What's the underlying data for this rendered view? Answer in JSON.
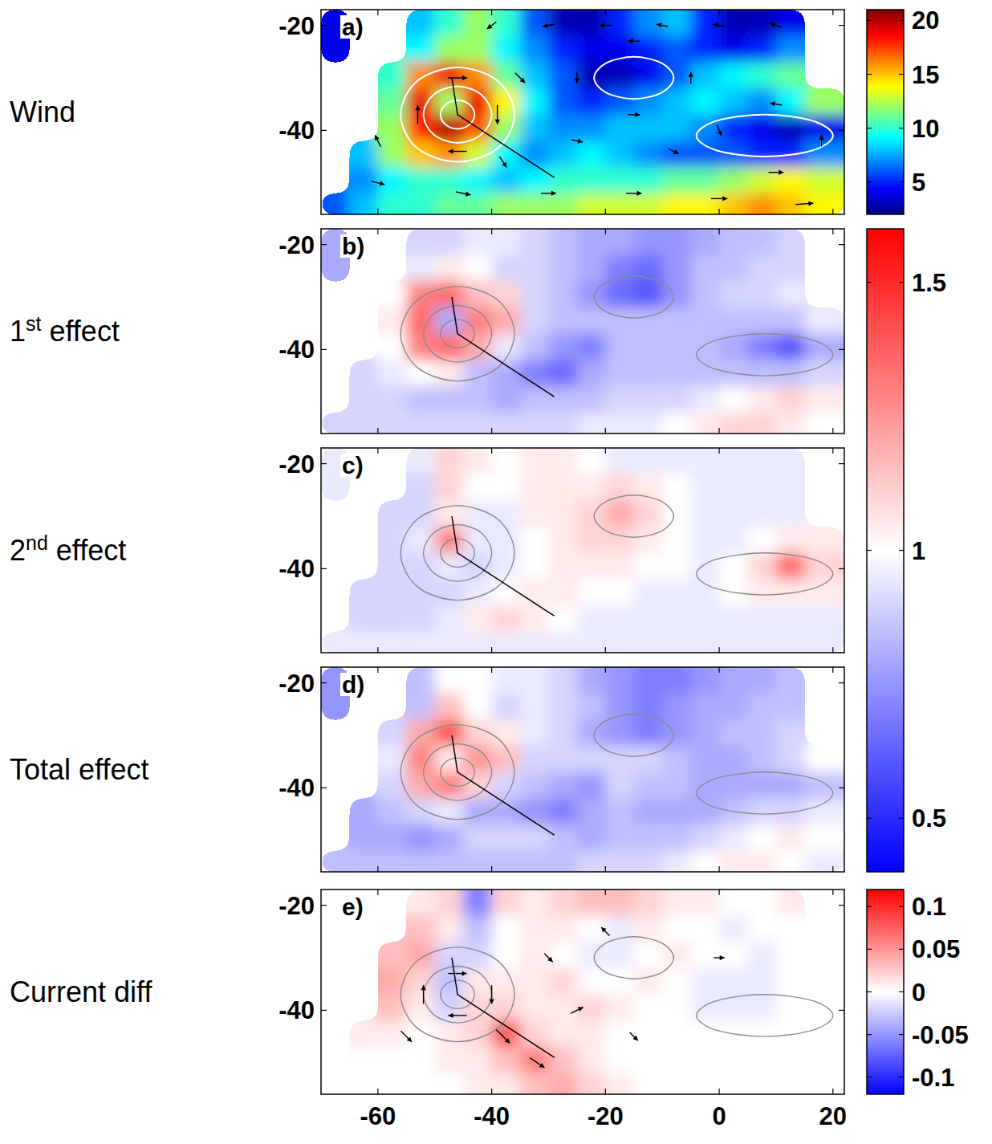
{
  "chart_data": {
    "type": "heatmap",
    "xlim": [
      -70,
      22
    ],
    "ylim": [
      -56,
      -17
    ],
    "xticks": [
      -60,
      -40,
      -20,
      0,
      20
    ],
    "yticks": [
      -20,
      -40
    ],
    "lon_edges": [
      -70,
      -65,
      -60,
      -55,
      -50,
      -45,
      -40,
      -35,
      -30,
      -25,
      -20,
      -15,
      -10,
      -5,
      0,
      5,
      10,
      15,
      22
    ],
    "lat_edges": [
      -17,
      -22,
      -27,
      -32,
      -37,
      -42,
      -47,
      -52,
      -56
    ],
    "isobars": [
      {
        "lon": [
          -43,
          -43.9,
          -46,
          -48.1,
          -49,
          -48.1,
          -46,
          -43.9
        ],
        "lat": [
          -37,
          -35.1,
          -34.3,
          -35.1,
          -37,
          -38.9,
          -39.7,
          -38.9
        ]
      },
      {
        "lon": [
          -40,
          -41.8,
          -46,
          -50.2,
          -52,
          -50.2,
          -46,
          -41.8
        ],
        "lat": [
          -37,
          -33.2,
          -31.6,
          -33.2,
          -37,
          -40.8,
          -42.4,
          -40.8
        ]
      },
      {
        "lon": [
          -36,
          -38.9,
          -46,
          -53.1,
          -56,
          -53.1,
          -46,
          -38.9
        ],
        "lat": [
          -37,
          -30.6,
          -28,
          -30.6,
          -37,
          -43.4,
          -46,
          -43.4
        ]
      },
      {
        "lon": [
          -8,
          -10.1,
          -15,
          -19.9,
          -22,
          -19.9,
          -15,
          -10.1
        ],
        "lat": [
          -30,
          -27.2,
          -26,
          -27.2,
          -30,
          -32.8,
          -34,
          -32.8
        ]
      },
      {
        "lon": [
          20,
          16.5,
          8,
          -0.5,
          -4,
          -0.5,
          8,
          16.5
        ],
        "lat": [
          -41,
          -38.2,
          -37,
          -38.2,
          -41,
          -43.8,
          -45,
          -43.8
        ]
      }
    ],
    "track": {
      "lon": [
        -47,
        -46,
        -29
      ],
      "lat": [
        -30,
        -37,
        -49
      ]
    },
    "panels": [
      {
        "label": "Wind",
        "letter": "a)",
        "color": "jet",
        "cells": [
          [
            4,
            null,
            null,
            8,
            10,
            12,
            10,
            6,
            3,
            3,
            5,
            7,
            8,
            5,
            3,
            3,
            4,
            null
          ],
          [
            4,
            null,
            null,
            9,
            12,
            12,
            9,
            7,
            5,
            4,
            4,
            5,
            6,
            5,
            4,
            5,
            7,
            null
          ],
          [
            null,
            null,
            10,
            16,
            19,
            16,
            11,
            8,
            6,
            3,
            3,
            4,
            6,
            8,
            9,
            10,
            11,
            null
          ],
          [
            null,
            null,
            11,
            19,
            12,
            19,
            14,
            9,
            6,
            5,
            6,
            7,
            8,
            9,
            8,
            7,
            9,
            12
          ],
          [
            null,
            null,
            12,
            18,
            20,
            17,
            12,
            8,
            7,
            7,
            8,
            8,
            8,
            7,
            5,
            4,
            3,
            4
          ],
          [
            null,
            8,
            12,
            15,
            16,
            13,
            9,
            7,
            8,
            9,
            8,
            7,
            6,
            6,
            6,
            5,
            5,
            7
          ],
          [
            null,
            7,
            9,
            10,
            10,
            9,
            8,
            9,
            10,
            10,
            10,
            10,
            11,
            11,
            12,
            13,
            14,
            13
          ],
          [
            6,
            8,
            10,
            10,
            11,
            11,
            12,
            12,
            12,
            13,
            13,
            13,
            14,
            14,
            15,
            16,
            15,
            14
          ]
        ],
        "vectors": {
          "lon": [
            -40,
            -30,
            -20,
            -10,
            0,
            10,
            -46,
            -39,
            -46,
            -53,
            -35,
            -38,
            -25,
            -15,
            -5,
            -15,
            0,
            10,
            18,
            10,
            -60,
            -45,
            -30,
            -15,
            0,
            15,
            -25,
            -8,
            -60
          ],
          "lat": [
            -20,
            -20,
            -20,
            -20,
            -20,
            -20,
            -30,
            -37,
            -44,
            -37,
            -30,
            -46,
            -30,
            -23,
            -30,
            -37,
            -40,
            -35,
            -42,
            -48,
            -50,
            -52,
            -52,
            -52,
            -53,
            -54,
            -42,
            -44,
            -42
          ],
          "u": [
            -4,
            -5,
            -5,
            -5,
            -6,
            -6,
            16,
            0,
            -15,
            0,
            6,
            4,
            0,
            -5,
            0,
            6,
            2,
            -6,
            0,
            10,
            8,
            10,
            10,
            11,
            12,
            14,
            5,
            4,
            -3
          ],
          "v": [
            -3,
            -1,
            0,
            1,
            1,
            2,
            0,
            -16,
            0,
            15,
            -6,
            -6,
            -4,
            0,
            5,
            0,
            -5,
            1,
            5,
            0,
            -2,
            -2,
            0,
            0,
            0,
            1,
            -1,
            -2,
            6
          ]
        }
      },
      {
        "label": "1st effect",
        "letter": "b)",
        "color": "diverging",
        "cells": [
          [
            0.8,
            null,
            null,
            0.9,
            0.9,
            0.95,
            0.95,
            0.9,
            0.85,
            0.8,
            0.8,
            0.75,
            0.75,
            0.8,
            0.85,
            0.85,
            0.9,
            null
          ],
          [
            0.8,
            null,
            null,
            0.95,
            1.05,
            1.0,
            0.9,
            0.9,
            0.85,
            0.8,
            0.7,
            0.65,
            0.75,
            0.85,
            0.85,
            0.9,
            0.9,
            null
          ],
          [
            null,
            null,
            1.0,
            1.3,
            1.35,
            1.15,
            1.1,
            0.9,
            0.85,
            0.75,
            0.65,
            0.6,
            0.75,
            0.85,
            0.9,
            0.9,
            0.95,
            null
          ],
          [
            null,
            null,
            1.05,
            1.35,
            0.8,
            1.3,
            1.2,
            0.9,
            0.85,
            0.85,
            0.85,
            0.85,
            0.85,
            0.85,
            0.85,
            0.85,
            0.85,
            0.95
          ],
          [
            null,
            null,
            1.0,
            1.3,
            1.35,
            1.2,
            0.95,
            0.85,
            0.75,
            0.7,
            0.85,
            0.85,
            0.85,
            0.85,
            0.8,
            0.7,
            0.6,
            0.8
          ],
          [
            null,
            0.9,
            0.95,
            1.0,
            1.05,
            0.85,
            0.8,
            0.7,
            0.65,
            0.8,
            0.85,
            0.85,
            0.85,
            0.85,
            0.85,
            0.85,
            0.85,
            0.9
          ],
          [
            null,
            0.9,
            0.9,
            0.85,
            0.85,
            0.85,
            0.8,
            0.85,
            0.85,
            0.85,
            0.9,
            0.9,
            0.9,
            0.95,
            1.0,
            1.05,
            1.1,
            1.05
          ],
          [
            0.9,
            0.9,
            0.9,
            0.9,
            0.9,
            0.9,
            0.9,
            0.9,
            0.9,
            0.95,
            0.95,
            0.95,
            1.0,
            1.05,
            1.1,
            1.1,
            1.05,
            1.0
          ]
        ]
      },
      {
        "label": "2nd effect",
        "letter": "c)",
        "color": "diverging",
        "cells": [
          [
            0.95,
            null,
            null,
            0.95,
            1.1,
            1.05,
            1.0,
            1.05,
            1.05,
            1.0,
            0.95,
            0.95,
            0.95,
            0.95,
            0.95,
            0.95,
            0.95,
            null
          ],
          [
            0.95,
            null,
            null,
            0.9,
            1.1,
            1.0,
            1.0,
            1.05,
            1.05,
            1.05,
            1.1,
            1.05,
            1.0,
            0.95,
            0.95,
            0.95,
            0.95,
            null
          ],
          [
            null,
            null,
            0.9,
            0.9,
            1.05,
            0.95,
            0.95,
            1.05,
            1.05,
            1.1,
            1.2,
            1.1,
            1.0,
            0.95,
            0.95,
            0.95,
            0.95,
            null
          ],
          [
            null,
            null,
            0.9,
            0.95,
            1.3,
            0.95,
            0.95,
            1.0,
            1.05,
            1.1,
            1.1,
            1.05,
            1.0,
            0.95,
            0.95,
            1.0,
            1.05,
            1.05
          ],
          [
            null,
            null,
            0.9,
            0.9,
            0.95,
            0.9,
            0.95,
            1.0,
            1.05,
            1.05,
            1.05,
            1.0,
            1.0,
            0.95,
            1.0,
            1.1,
            1.35,
            1.1
          ],
          [
            null,
            0.9,
            0.9,
            0.9,
            0.9,
            0.95,
            1.0,
            1.05,
            1.05,
            1.0,
            1.0,
            0.95,
            0.95,
            0.95,
            1.0,
            1.05,
            1.05,
            1.05
          ],
          [
            null,
            0.9,
            0.9,
            0.9,
            0.95,
            1.05,
            1.1,
            1.05,
            1.0,
            0.95,
            0.95,
            0.95,
            0.95,
            0.95,
            0.95,
            0.95,
            0.95,
            0.95
          ],
          [
            0.95,
            0.95,
            0.95,
            0.95,
            0.95,
            0.95,
            0.95,
            0.95,
            0.95,
            0.95,
            0.95,
            0.95,
            0.95,
            0.95,
            0.95,
            0.95,
            0.95,
            0.95
          ]
        ]
      },
      {
        "label": "Total effect",
        "letter": "d)",
        "color": "diverging",
        "cells": [
          [
            0.75,
            null,
            null,
            0.85,
            1.0,
            1.0,
            0.95,
            0.95,
            0.9,
            0.8,
            0.75,
            0.7,
            0.7,
            0.75,
            0.8,
            0.8,
            0.85,
            null
          ],
          [
            0.75,
            null,
            null,
            0.85,
            1.15,
            1.0,
            0.9,
            0.95,
            0.9,
            0.85,
            0.75,
            0.7,
            0.75,
            0.8,
            0.8,
            0.85,
            0.85,
            null
          ],
          [
            null,
            null,
            0.9,
            1.2,
            1.4,
            1.1,
            1.05,
            0.95,
            0.9,
            0.8,
            0.75,
            0.7,
            0.75,
            0.8,
            0.85,
            0.85,
            0.9,
            null
          ],
          [
            null,
            null,
            0.95,
            1.3,
            1.05,
            1.25,
            1.15,
            0.9,
            0.9,
            0.9,
            0.9,
            0.9,
            0.85,
            0.8,
            0.8,
            0.85,
            0.9,
            1.0
          ],
          [
            null,
            null,
            0.9,
            1.2,
            1.3,
            1.1,
            0.9,
            0.85,
            0.8,
            0.75,
            0.9,
            0.85,
            0.85,
            0.8,
            0.8,
            0.8,
            0.8,
            0.85
          ],
          [
            null,
            0.8,
            0.85,
            0.9,
            0.95,
            0.8,
            0.8,
            0.75,
            0.7,
            0.8,
            0.85,
            0.8,
            0.8,
            0.8,
            0.85,
            0.9,
            0.9,
            0.95
          ],
          [
            null,
            0.8,
            0.8,
            0.75,
            0.8,
            0.9,
            0.9,
            0.9,
            0.85,
            0.8,
            0.85,
            0.85,
            0.85,
            0.9,
            0.95,
            1.0,
            1.05,
            1.0
          ],
          [
            0.85,
            0.85,
            0.85,
            0.85,
            0.85,
            0.85,
            0.85,
            0.85,
            0.85,
            0.9,
            0.9,
            0.9,
            0.95,
            1.0,
            1.05,
            1.05,
            1.0,
            0.95
          ]
        ]
      },
      {
        "label": "Current diff",
        "letter": "e)",
        "color": "diverging",
        "cells": [
          [
            0,
            null,
            null,
            0.01,
            0.02,
            -0.06,
            0.02,
            0.01,
            0.02,
            0.03,
            0.03,
            0.02,
            0.01,
            0.01,
            0,
            0,
            0.01,
            null
          ],
          [
            0,
            null,
            null,
            0.03,
            0.01,
            -0.03,
            0,
            0.01,
            0.01,
            0,
            -0.01,
            0.01,
            0,
            0,
            -0.01,
            0,
            0,
            null
          ],
          [
            null,
            null,
            0.03,
            0.04,
            -0.02,
            -0.02,
            0,
            0.01,
            0,
            -0.01,
            -0.01,
            0,
            0.01,
            0,
            0,
            -0.01,
            0,
            null
          ],
          [
            null,
            null,
            0.04,
            0.02,
            -0.03,
            0.01,
            0.01,
            0.01,
            0.02,
            0,
            0,
            0.01,
            0,
            -0.01,
            -0.01,
            -0.01,
            0,
            0
          ],
          [
            null,
            null,
            0.03,
            0.01,
            -0.02,
            0.02,
            0.02,
            0.01,
            0.01,
            0.02,
            0.01,
            0,
            0,
            -0.01,
            -0.01,
            -0.01,
            0,
            0
          ],
          [
            null,
            0.01,
            0.01,
            0,
            0.01,
            0.02,
            0.08,
            0.02,
            0.01,
            0.01,
            0,
            0,
            0,
            0,
            0,
            0,
            0,
            0
          ],
          [
            null,
            0,
            0,
            0,
            0.01,
            0.01,
            0.03,
            0.06,
            0.03,
            0.01,
            0,
            0,
            0,
            0,
            0,
            0,
            0,
            0
          ],
          [
            0,
            0,
            0,
            0,
            0,
            0.01,
            0.01,
            0.03,
            0.04,
            0.02,
            0.01,
            0,
            0,
            0,
            0,
            0,
            0,
            0
          ]
        ],
        "vectors": {
          "lon": [
            -46,
            -40,
            -46,
            -52,
            -38,
            -32,
            -25,
            -15,
            -30,
            -20,
            0,
            -55
          ],
          "lat": [
            -33,
            -37,
            -41,
            -37,
            -45,
            -50,
            -40,
            -45,
            -30,
            -25,
            -30,
            -45
          ],
          "u": [
            0.04,
            0,
            -0.04,
            0,
            0.03,
            0.03,
            0.02,
            0.01,
            0.01,
            -0.01,
            0.01,
            0.02
          ],
          "v": [
            0,
            -0.04,
            0,
            0.04,
            -0.03,
            -0.02,
            0.01,
            -0.01,
            -0.01,
            0.01,
            0,
            -0.02
          ]
        }
      }
    ],
    "colorbars": [
      {
        "range": [
          2,
          21
        ],
        "ticks": [
          5,
          10,
          15,
          20
        ],
        "panels": [
          0
        ]
      },
      {
        "range": [
          0.4,
          1.6
        ],
        "ticks": [
          0.5,
          1,
          1.5
        ],
        "panels": [
          1,
          2,
          3
        ]
      },
      {
        "range": [
          -0.12,
          0.12
        ],
        "ticks": [
          -0.1,
          -0.05,
          0,
          0.05,
          0.1
        ],
        "panels": [
          4
        ]
      }
    ]
  }
}
